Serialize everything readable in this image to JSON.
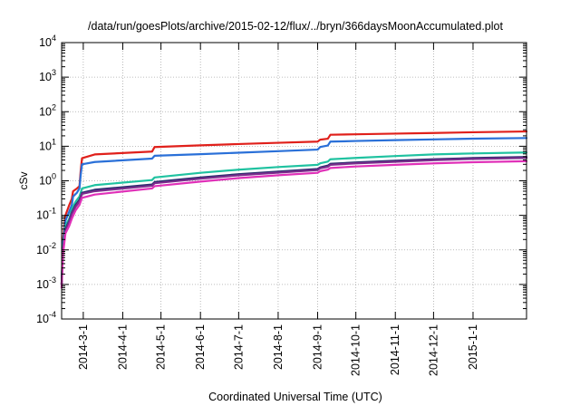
{
  "chart_data": {
    "type": "line",
    "title": "/data/run/goesPlots/archive/2015-02-12/flux/../bryn/366daysMoonAccumulated.plot",
    "xlabel": "Coordinated Universal Time (UTC)",
    "ylabel": "cSv",
    "yscale": "log",
    "ylim": [
      0.0001,
      10000
    ],
    "xlim": [
      "2014-02-12",
      "2015-02-12"
    ],
    "grid": true,
    "y_ticks": [
      {
        "value": 0.0001,
        "base": "10",
        "exp": "-4"
      },
      {
        "value": 0.001,
        "base": "10",
        "exp": "-3"
      },
      {
        "value": 0.01,
        "base": "10",
        "exp": "-2"
      },
      {
        "value": 0.1,
        "base": "10",
        "exp": "-1"
      },
      {
        "value": 1,
        "base": "10",
        "exp": "0"
      },
      {
        "value": 10,
        "base": "10",
        "exp": "1"
      },
      {
        "value": 100,
        "base": "10",
        "exp": "2"
      },
      {
        "value": 1000,
        "base": "10",
        "exp": "3"
      },
      {
        "value": 10000,
        "base": "10",
        "exp": "4"
      }
    ],
    "x_ticks": [
      {
        "date": "2014-03-01",
        "label": "2014-3-1"
      },
      {
        "date": "2014-04-01",
        "label": "2014-4-1"
      },
      {
        "date": "2014-05-01",
        "label": "2014-5-1"
      },
      {
        "date": "2014-06-01",
        "label": "2014-6-1"
      },
      {
        "date": "2014-07-01",
        "label": "2014-7-1"
      },
      {
        "date": "2014-08-01",
        "label": "2014-8-1"
      },
      {
        "date": "2014-09-01",
        "label": "2014-9-1"
      },
      {
        "date": "2014-10-01",
        "label": "2014-10-1"
      },
      {
        "date": "2014-11-01",
        "label": "2014-11-1"
      },
      {
        "date": "2014-12-01",
        "label": "2014-12-1"
      },
      {
        "date": "2015-01-01",
        "label": "2015-1-1"
      }
    ],
    "series": [
      {
        "color": "#e0201b",
        "points": [
          [
            "2014-02-12",
            0.001
          ],
          [
            "2014-02-13",
            0.02
          ],
          [
            "2014-02-15",
            0.1
          ],
          [
            "2014-02-18",
            0.2
          ],
          [
            "2014-02-20",
            0.3
          ],
          [
            "2014-02-21",
            0.5
          ],
          [
            "2014-02-24",
            0.6
          ],
          [
            "2014-02-26",
            0.7
          ],
          [
            "2014-02-27",
            2.0
          ],
          [
            "2014-02-28",
            4.5
          ],
          [
            "2014-03-10",
            5.8
          ],
          [
            "2014-04-24",
            7.0
          ],
          [
            "2014-04-26",
            9.5
          ],
          [
            "2014-06-01",
            10.6
          ],
          [
            "2014-07-01",
            11.6
          ],
          [
            "2014-08-01",
            12.6
          ],
          [
            "2014-09-01",
            13.6
          ],
          [
            "2014-09-03",
            15.5
          ],
          [
            "2014-09-09",
            16.5
          ],
          [
            "2014-09-11",
            21.5
          ],
          [
            "2014-10-01",
            22.2
          ],
          [
            "2014-11-01",
            23.2
          ],
          [
            "2014-12-01",
            24.2
          ],
          [
            "2015-01-01",
            25.4
          ],
          [
            "2015-02-12",
            26.8
          ]
        ]
      },
      {
        "color": "#2a70d8",
        "points": [
          [
            "2014-02-12",
            0.001
          ],
          [
            "2014-02-13",
            0.015
          ],
          [
            "2014-02-15",
            0.07
          ],
          [
            "2014-02-18",
            0.13
          ],
          [
            "2014-02-20",
            0.2
          ],
          [
            "2014-02-21",
            0.35
          ],
          [
            "2014-02-24",
            0.45
          ],
          [
            "2014-02-26",
            0.6
          ],
          [
            "2014-02-27",
            1.5
          ],
          [
            "2014-02-28",
            3.0
          ],
          [
            "2014-03-10",
            3.5
          ],
          [
            "2014-04-24",
            4.4
          ],
          [
            "2014-04-26",
            5.3
          ],
          [
            "2014-06-01",
            5.9
          ],
          [
            "2014-07-01",
            6.5
          ],
          [
            "2014-08-01",
            7.2
          ],
          [
            "2014-09-01",
            8.0
          ],
          [
            "2014-09-03",
            9.5
          ],
          [
            "2014-09-09",
            10.5
          ],
          [
            "2014-09-11",
            13.6
          ],
          [
            "2014-10-01",
            14.2
          ],
          [
            "2014-11-01",
            15.0
          ],
          [
            "2014-12-01",
            15.8
          ],
          [
            "2015-01-01",
            16.6
          ],
          [
            "2015-02-12",
            17.3
          ]
        ]
      },
      {
        "color": "#1fc2a0",
        "points": [
          [
            "2014-02-12",
            0.001
          ],
          [
            "2014-02-13",
            0.012
          ],
          [
            "2014-02-15",
            0.05
          ],
          [
            "2014-02-18",
            0.08
          ],
          [
            "2014-02-20",
            0.15
          ],
          [
            "2014-02-23",
            0.25
          ],
          [
            "2014-02-26",
            0.35
          ],
          [
            "2014-02-28",
            0.6
          ],
          [
            "2014-03-10",
            0.75
          ],
          [
            "2014-04-24",
            1.05
          ],
          [
            "2014-04-26",
            1.25
          ],
          [
            "2014-06-01",
            1.7
          ],
          [
            "2014-07-01",
            2.1
          ],
          [
            "2014-08-01",
            2.5
          ],
          [
            "2014-09-01",
            2.9
          ],
          [
            "2014-09-03",
            3.2
          ],
          [
            "2014-09-09",
            3.6
          ],
          [
            "2014-09-11",
            4.2
          ],
          [
            "2014-10-01",
            4.6
          ],
          [
            "2014-11-01",
            5.2
          ],
          [
            "2014-12-01",
            5.8
          ],
          [
            "2015-01-01",
            6.2
          ],
          [
            "2015-02-12",
            6.6
          ]
        ]
      },
      {
        "color": "#2b2d6e",
        "points": [
          [
            "2014-02-12",
            0.001
          ],
          [
            "2014-02-13",
            0.01
          ],
          [
            "2014-02-15",
            0.04
          ],
          [
            "2014-02-18",
            0.07
          ],
          [
            "2014-02-20",
            0.12
          ],
          [
            "2014-02-23",
            0.2
          ],
          [
            "2014-02-26",
            0.28
          ],
          [
            "2014-02-28",
            0.45
          ],
          [
            "2014-03-10",
            0.55
          ],
          [
            "2014-04-24",
            0.78
          ],
          [
            "2014-04-26",
            0.92
          ],
          [
            "2014-06-01",
            1.25
          ],
          [
            "2014-07-01",
            1.55
          ],
          [
            "2014-08-01",
            1.85
          ],
          [
            "2014-09-01",
            2.2
          ],
          [
            "2014-09-03",
            2.45
          ],
          [
            "2014-09-09",
            2.75
          ],
          [
            "2014-09-11",
            3.1
          ],
          [
            "2014-10-01",
            3.4
          ],
          [
            "2014-11-01",
            3.8
          ],
          [
            "2014-12-01",
            4.2
          ],
          [
            "2015-01-01",
            4.55
          ],
          [
            "2015-02-12",
            4.9
          ]
        ]
      },
      {
        "color": "#7a2c8c",
        "points": [
          [
            "2014-02-12",
            0.001
          ],
          [
            "2014-02-13",
            0.009
          ],
          [
            "2014-02-15",
            0.035
          ],
          [
            "2014-02-18",
            0.065
          ],
          [
            "2014-02-20",
            0.11
          ],
          [
            "2014-02-23",
            0.18
          ],
          [
            "2014-02-26",
            0.25
          ],
          [
            "2014-02-28",
            0.42
          ],
          [
            "2014-03-10",
            0.5
          ],
          [
            "2014-04-24",
            0.72
          ],
          [
            "2014-04-26",
            0.85
          ],
          [
            "2014-06-01",
            1.15
          ],
          [
            "2014-07-01",
            1.45
          ],
          [
            "2014-08-01",
            1.72
          ],
          [
            "2014-09-01",
            2.05
          ],
          [
            "2014-09-03",
            2.3
          ],
          [
            "2014-09-09",
            2.55
          ],
          [
            "2014-09-11",
            2.9
          ],
          [
            "2014-10-01",
            3.2
          ],
          [
            "2014-11-01",
            3.55
          ],
          [
            "2014-12-01",
            3.95
          ],
          [
            "2015-01-01",
            4.3
          ],
          [
            "2015-02-12",
            4.6
          ]
        ]
      },
      {
        "color": "#e030b8",
        "points": [
          [
            "2014-02-12",
            0.0008
          ],
          [
            "2014-02-13",
            0.007
          ],
          [
            "2014-02-15",
            0.03
          ],
          [
            "2014-02-18",
            0.05
          ],
          [
            "2014-02-20",
            0.08
          ],
          [
            "2014-02-23",
            0.14
          ],
          [
            "2014-02-26",
            0.2
          ],
          [
            "2014-02-28",
            0.32
          ],
          [
            "2014-03-10",
            0.4
          ],
          [
            "2014-04-24",
            0.6
          ],
          [
            "2014-04-26",
            0.7
          ],
          [
            "2014-06-01",
            0.95
          ],
          [
            "2014-07-01",
            1.2
          ],
          [
            "2014-08-01",
            1.45
          ],
          [
            "2014-09-01",
            1.7
          ],
          [
            "2014-09-03",
            1.9
          ],
          [
            "2014-09-09",
            2.1
          ],
          [
            "2014-09-11",
            2.35
          ],
          [
            "2014-10-01",
            2.6
          ],
          [
            "2014-11-01",
            2.9
          ],
          [
            "2014-12-01",
            3.2
          ],
          [
            "2015-01-01",
            3.45
          ],
          [
            "2015-02-12",
            3.7
          ]
        ]
      }
    ]
  }
}
